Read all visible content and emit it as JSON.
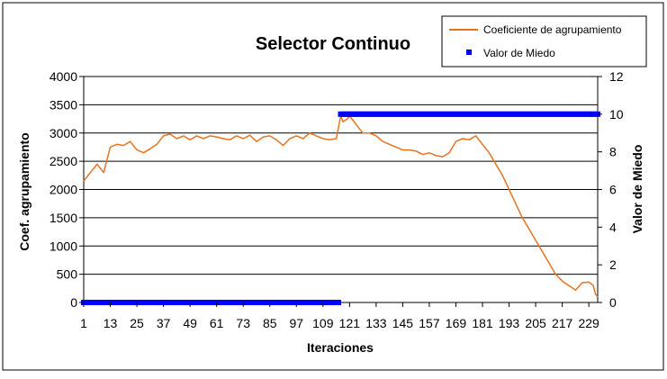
{
  "colors": {
    "line": "#e8731c",
    "points": "#0000ff",
    "grid": "#000000",
    "frame": "#000000"
  },
  "chart_data": {
    "type": "line",
    "title": "Selector Continuo",
    "xlabel": "Iteraciones",
    "ylabel": "Coef. agrupamiento",
    "y2label": "Valor de Miedo",
    "xlim": [
      1,
      233
    ],
    "ylim": [
      0,
      4000
    ],
    "y2lim": [
      0,
      12
    ],
    "x_ticks": [
      1,
      13,
      25,
      37,
      49,
      61,
      73,
      85,
      97,
      109,
      121,
      133,
      145,
      157,
      169,
      181,
      193,
      205,
      217,
      229
    ],
    "x_tick_labels": [
      "1",
      "13",
      "25",
      "37",
      "49",
      "61",
      "73",
      "85",
      "97",
      "109",
      "121",
      "133",
      "145",
      "157",
      "169",
      "181",
      "193",
      "205",
      "217",
      "229"
    ],
    "y_ticks": [
      0,
      500,
      1000,
      1500,
      2000,
      2500,
      3000,
      3500,
      4000
    ],
    "y_tick_labels": [
      "0",
      "500",
      "1000",
      "1500",
      "2000",
      "2500",
      "3000",
      "3500",
      "4000"
    ],
    "y2_ticks": [
      0,
      2,
      4,
      6,
      8,
      10,
      12
    ],
    "y2_tick_labels": [
      "0",
      "2",
      "4",
      "6",
      "8",
      "10",
      "12"
    ],
    "grid": true,
    "legend_position": "top-right",
    "series": [
      {
        "name": "Coeficiente de agrupamiento",
        "kind": "line",
        "axis": "left",
        "x": [
          1,
          4,
          7,
          10,
          13,
          16,
          19,
          22,
          25,
          28,
          31,
          34,
          37,
          40,
          43,
          46,
          49,
          52,
          55,
          58,
          61,
          64,
          67,
          70,
          73,
          76,
          79,
          82,
          85,
          88,
          91,
          94,
          97,
          100,
          103,
          106,
          109,
          112,
          115,
          117,
          118,
          120,
          121,
          124,
          127,
          130,
          133,
          136,
          139,
          142,
          145,
          148,
          151,
          154,
          157,
          160,
          163,
          166,
          169,
          172,
          175,
          178,
          181,
          184,
          187,
          190,
          193,
          196,
          199,
          202,
          205,
          208,
          211,
          214,
          217,
          220,
          223,
          226,
          229,
          231,
          232,
          233
        ],
        "values": [
          2150,
          2300,
          2450,
          2300,
          2750,
          2800,
          2780,
          2850,
          2700,
          2650,
          2720,
          2800,
          2950,
          2980,
          2900,
          2950,
          2880,
          2950,
          2900,
          2950,
          2930,
          2900,
          2880,
          2950,
          2900,
          2960,
          2850,
          2930,
          2950,
          2880,
          2780,
          2900,
          2950,
          2900,
          3000,
          2950,
          2900,
          2880,
          2900,
          3300,
          3200,
          3250,
          3300,
          3150,
          3000,
          3000,
          2950,
          2850,
          2800,
          2750,
          2700,
          2700,
          2680,
          2620,
          2650,
          2600,
          2580,
          2650,
          2850,
          2900,
          2880,
          2950,
          2800,
          2650,
          2450,
          2250,
          2000,
          1750,
          1500,
          1300,
          1100,
          900,
          700,
          500,
          380,
          300,
          220,
          350,
          360,
          300,
          150,
          100
        ]
      },
      {
        "name": "Valor de Miedo",
        "kind": "points",
        "axis": "right",
        "segments": [
          {
            "x_from": 1,
            "x_to": 116,
            "value": 0
          },
          {
            "x_from": 117,
            "x_to": 233,
            "value": 10
          }
        ]
      }
    ]
  }
}
